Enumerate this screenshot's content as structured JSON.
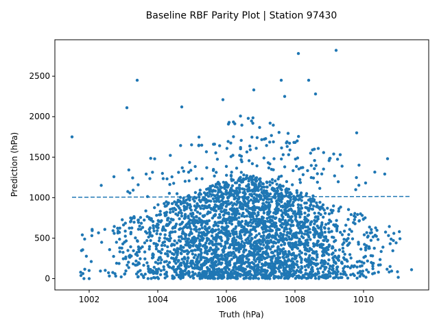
{
  "chart_data": {
    "type": "scatter",
    "title": "Baseline RBF Parity Plot | Station 97430",
    "xlabel": "Truth (hPa)",
    "ylabel": "Prediction (hPa)",
    "xlim": [
      1001.0,
      1011.9
    ],
    "ylim": [
      -140,
      2950
    ],
    "xticks": [
      1002,
      1004,
      1006,
      1008,
      1010
    ],
    "yticks": [
      0,
      500,
      1000,
      1500,
      2000,
      2500
    ],
    "grid": false,
    "legend": "none",
    "colors": {
      "points": "#1f77b4",
      "fit_line": "#1f77b4"
    },
    "fit_line": {
      "style": "dashed",
      "x": [
        1001.5,
        1011.4
      ],
      "y": [
        1005,
        1015
      ]
    },
    "notable_points": [
      {
        "x": 1001.5,
        "y": 1750
      },
      {
        "x": 1003.4,
        "y": 2450
      },
      {
        "x": 1003.1,
        "y": 2110
      },
      {
        "x": 1004.7,
        "y": 2120
      },
      {
        "x": 1005.9,
        "y": 2210
      },
      {
        "x": 1006.8,
        "y": 2330
      },
      {
        "x": 1007.6,
        "y": 2450
      },
      {
        "x": 1007.7,
        "y": 2250
      },
      {
        "x": 1008.1,
        "y": 2780
      },
      {
        "x": 1008.4,
        "y": 2450
      },
      {
        "x": 1008.6,
        "y": 2280
      },
      {
        "x": 1009.2,
        "y": 2820
      },
      {
        "x": 1009.8,
        "y": 1800
      },
      {
        "x": 1010.7,
        "y": 1480
      },
      {
        "x": 1011.4,
        "y": 110
      },
      {
        "x": 1001.8,
        "y": 540
      },
      {
        "x": 1002.0,
        "y": 0
      }
    ],
    "point_cloud": {
      "approx_count": 3200,
      "x_center": 1006.6,
      "x_spread": 1.7,
      "y_range": [
        0,
        1300
      ],
      "y_concentration": "dense near 0-600, thinning above 1000"
    }
  }
}
